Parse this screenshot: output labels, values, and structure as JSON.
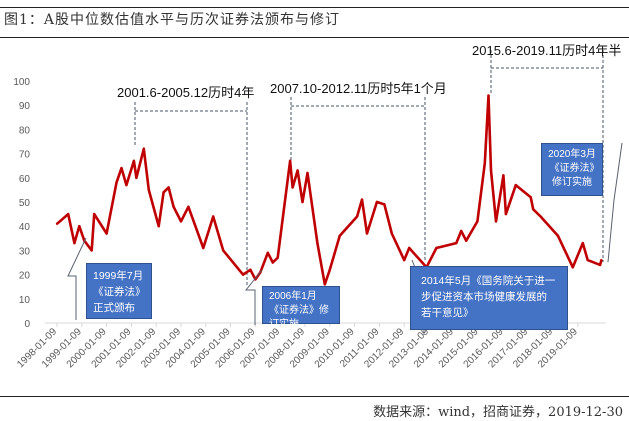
{
  "title": "图1：A股中位数估值水平与历次证券法颁布与修订",
  "footer": "数据来源：wind，招商证券，2019-12-30",
  "chart_data": {
    "type": "line",
    "title": "",
    "xlabel": "",
    "ylabel": "",
    "ylim": [
      0,
      100
    ],
    "yticks": [
      0,
      10,
      20,
      30,
      40,
      50,
      60,
      70,
      80,
      90,
      100
    ],
    "xtick_labels": [
      "1998-01-09",
      "1999-01-09",
      "2000-01-09",
      "2001-01-09",
      "2002-01-09",
      "2003-01-09",
      "2004-01-09",
      "2005-01-09",
      "2006-01-09",
      "2007-01-09",
      "2008-01-09",
      "2009-01-09",
      "2010-01-09",
      "2011-01-09",
      "2012-01-09",
      "2013-01-09",
      "2014-01-09",
      "2015-01-09",
      "2016-01-09",
      "2017-01-09",
      "2018-01-09",
      "2019-01-09"
    ],
    "grid": false,
    "line_color": "#c00000",
    "series": [
      {
        "x": [
          1998.0,
          1998.45,
          1998.7,
          1998.9,
          1999.1,
          1999.4,
          1999.5,
          2000.0,
          2000.4,
          2000.6,
          2000.8,
          2001.1,
          2001.2,
          2001.5,
          2001.7,
          2002.1,
          2002.3,
          2002.5,
          2002.7,
          2003.0,
          2003.3,
          2003.9,
          2004.3,
          2004.7,
          2005.5,
          2005.8,
          2006.0,
          2006.2,
          2006.5,
          2006.7,
          2006.9,
          2007.4,
          2007.5,
          2007.7,
          2007.9,
          2008.1,
          2008.5,
          2008.8,
          2009.0,
          2009.4,
          2010.1,
          2010.3,
          2010.5,
          2010.9,
          2011.2,
          2011.5,
          2012.0,
          2012.2,
          2012.9,
          2013.3,
          2014.1,
          2014.3,
          2014.5,
          2014.95,
          2015.25,
          2015.4,
          2015.5,
          2015.7,
          2016.0,
          2016.1,
          2016.5,
          2017.1,
          2017.2,
          2017.5,
          2018.2,
          2018.8,
          2019.2,
          2019.4,
          2019.9,
          2019.95
        ],
        "y": [
          41,
          45,
          33,
          40,
          34,
          30,
          45,
          37,
          58,
          64,
          57,
          67,
          60,
          72,
          55,
          40,
          54,
          56,
          48,
          42,
          48,
          31,
          44,
          30,
          20,
          22,
          18,
          21,
          29,
          25,
          27,
          67,
          56,
          63,
          50,
          62,
          33,
          16,
          22,
          36,
          44,
          51,
          37,
          50,
          49,
          37,
          26,
          31,
          23,
          31,
          33,
          38,
          34,
          42,
          66,
          94,
          63,
          42,
          61,
          45,
          57,
          52,
          47,
          44,
          36,
          23,
          33,
          26,
          24,
          26
        ]
      }
    ],
    "annotations": {
      "periods": [
        {
          "label": "2001.6-2005.12历时4年",
          "start": 2001.5,
          "end": 2005.95
        },
        {
          "label": "2007.10-2012.11历时5年1个月",
          "start": 2007.8,
          "end": 2012.9
        },
        {
          "label": "2015.6-2019.11历时4年半",
          "start": 2015.45,
          "end": 2019.95
        }
      ],
      "callouts": [
        {
          "text": "1999年7月《证券法》正式颁布"
        },
        {
          "text": "2006年1月《证券法》修订实施"
        },
        {
          "text": "2014年5月《国务院关于进一步促进资本市场健康发展的若干意见》"
        },
        {
          "text": "2020年3月《证券法》修订实施"
        }
      ]
    }
  }
}
